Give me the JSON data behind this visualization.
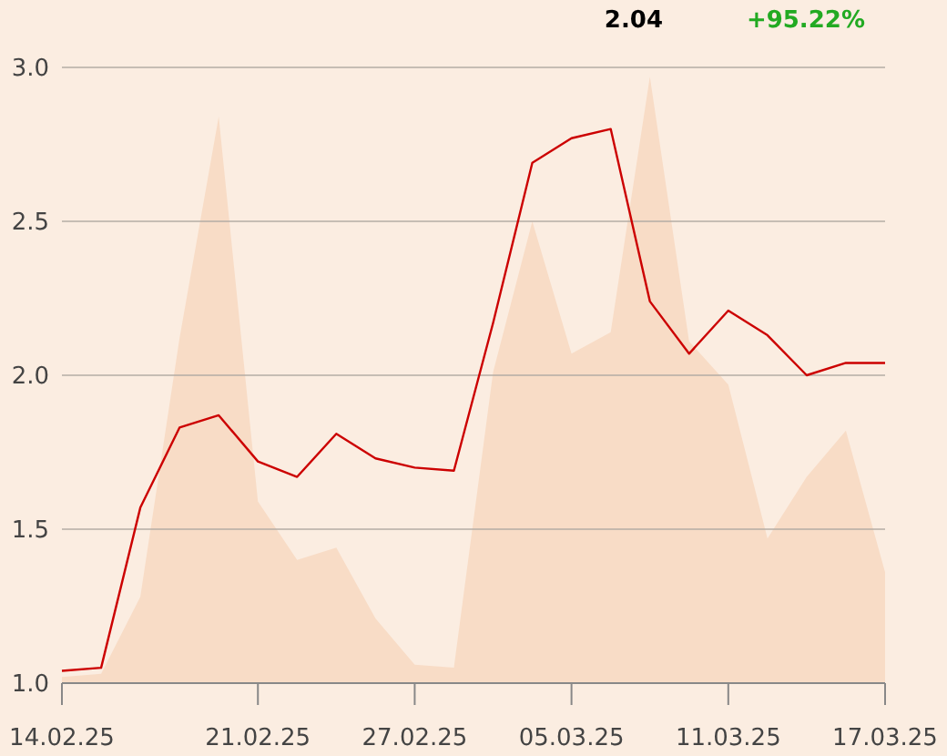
{
  "chart_data": {
    "type": "line",
    "categories": [
      "14.02.25",
      null,
      null,
      null,
      null,
      "21.02.25",
      null,
      null,
      null,
      "27.02.25",
      null,
      null,
      null,
      "05.03.25",
      null,
      null,
      null,
      "11.03.25",
      null,
      null,
      null,
      "17.03.25"
    ],
    "series": [
      {
        "type": "area",
        "color": "#f8dcc6",
        "values": [
          1.02,
          1.03,
          1.28,
          2.12,
          2.84,
          1.59,
          1.4,
          1.44,
          1.21,
          1.06,
          1.05,
          2.01,
          2.5,
          2.07,
          2.14,
          2.97,
          2.11,
          1.97,
          1.47,
          1.67,
          1.82,
          1.36
        ]
      },
      {
        "color": "#cc0000",
        "values": [
          1.04,
          1.05,
          1.57,
          1.83,
          1.87,
          1.72,
          1.67,
          1.81,
          1.73,
          1.7,
          1.69,
          2.17,
          2.69,
          2.77,
          2.8,
          2.24,
          2.07,
          2.21,
          2.13,
          2.0,
          2.04,
          2.04
        ]
      }
    ],
    "ylim": [
      1.0,
      3.0
    ],
    "yticks": [
      {
        "value": 1,
        "label": "1.0"
      },
      {
        "value": 1.5,
        "label": "1.5"
      },
      {
        "value": 2,
        "label": "2.0"
      },
      {
        "value": 2.5,
        "label": "2.5"
      },
      {
        "value": 3,
        "label": "3.0"
      }
    ],
    "grid": "y",
    "marker": "none",
    "line_style": "solid",
    "annotations": [
      "2.04",
      "+95.22%"
    ]
  }
}
